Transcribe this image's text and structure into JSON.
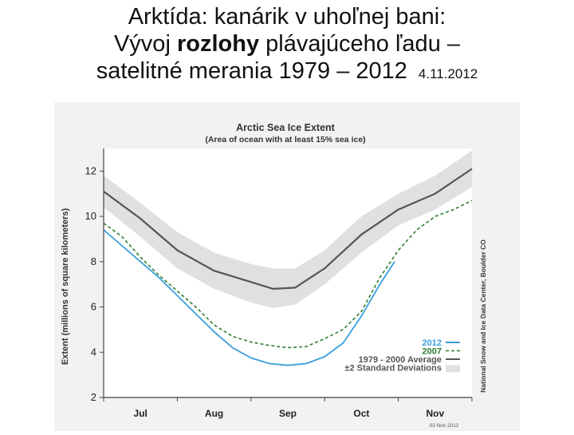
{
  "slide": {
    "title_line1": "Arktída: kanárik v uhoľnej bani:",
    "title_line2_pre": "Vývoj ",
    "title_line2_bold": "rozlohy",
    "title_line2_post": " plávajúceho ľadu –",
    "title_line3": "satelitné merania 1979 – 2012",
    "date": "4.11.2012"
  },
  "chart_data": {
    "type": "line",
    "title": "Arctic Sea Ice Extent",
    "subtitle": "(Area of ocean with at least 15% sea ice)",
    "ylabel": "Extent (millions of square kilometers)",
    "categories": [
      "Jul",
      "Aug",
      "Sep",
      "Oct",
      "Nov"
    ],
    "category_x": [
      0.5,
      1.5,
      2.5,
      3.5,
      4.5
    ],
    "xlim": [
      0,
      5
    ],
    "ylim": [
      2,
      13
    ],
    "yticks": [
      2,
      4,
      6,
      8,
      10,
      12
    ],
    "series": [
      {
        "name": "1979 - 2000 Average",
        "color": "#555555",
        "style": "solid",
        "x": [
          0,
          0.5,
          1,
          1.5,
          2,
          2.3,
          2.6,
          3.0,
          3.5,
          4.0,
          4.5,
          5.0
        ],
        "y": [
          11.1,
          9.9,
          8.5,
          7.6,
          7.1,
          6.8,
          6.85,
          7.7,
          9.2,
          10.3,
          11.0,
          12.1
        ]
      },
      {
        "name": "±2 Standard Deviations",
        "color": "#e0e0e0",
        "style": "band",
        "x": [
          0,
          0.5,
          1,
          1.5,
          2,
          2.3,
          2.6,
          3.0,
          3.5,
          4.0,
          4.5,
          5.0
        ],
        "lower": [
          10.4,
          9.1,
          7.7,
          6.8,
          6.2,
          5.95,
          6.1,
          7.0,
          8.4,
          9.6,
          10.3,
          11.3
        ],
        "upper": [
          11.8,
          10.6,
          9.3,
          8.4,
          7.9,
          7.7,
          7.7,
          8.5,
          10.0,
          11.0,
          11.8,
          12.9
        ]
      },
      {
        "name": "2007",
        "color": "#2e7d32",
        "style": "dashed",
        "x": [
          0,
          0.25,
          0.5,
          0.75,
          1.0,
          1.25,
          1.5,
          1.75,
          2.0,
          2.25,
          2.5,
          2.75,
          3.0,
          3.25,
          3.5,
          3.75,
          4.0,
          4.25,
          4.5,
          4.75,
          5.0
        ],
        "y": [
          9.7,
          9.1,
          8.2,
          7.4,
          6.7,
          6.0,
          5.2,
          4.7,
          4.45,
          4.3,
          4.2,
          4.25,
          4.6,
          5.0,
          5.8,
          7.3,
          8.5,
          9.4,
          10.0,
          10.3,
          10.7
        ]
      },
      {
        "name": "2012",
        "color": "#3b9fdc",
        "style": "solid",
        "x": [
          0,
          0.25,
          0.5,
          0.75,
          1.0,
          1.25,
          1.5,
          1.75,
          2.0,
          2.25,
          2.5,
          2.75,
          3.0,
          3.25,
          3.5,
          3.75,
          3.95
        ],
        "y": [
          9.4,
          8.7,
          8.0,
          7.3,
          6.5,
          5.7,
          4.9,
          4.2,
          3.75,
          3.5,
          3.42,
          3.5,
          3.8,
          4.4,
          5.6,
          7.0,
          8.0
        ]
      }
    ],
    "legend": {
      "position": "bottom-right",
      "items": [
        "2012",
        "2007",
        "1979 - 2000 Average",
        "±2 Standard Deviations"
      ]
    },
    "credit": "National Snow and Ice Data Center, Boulder CO",
    "date_stamp": "03 Nov 2012",
    "grid": false
  }
}
